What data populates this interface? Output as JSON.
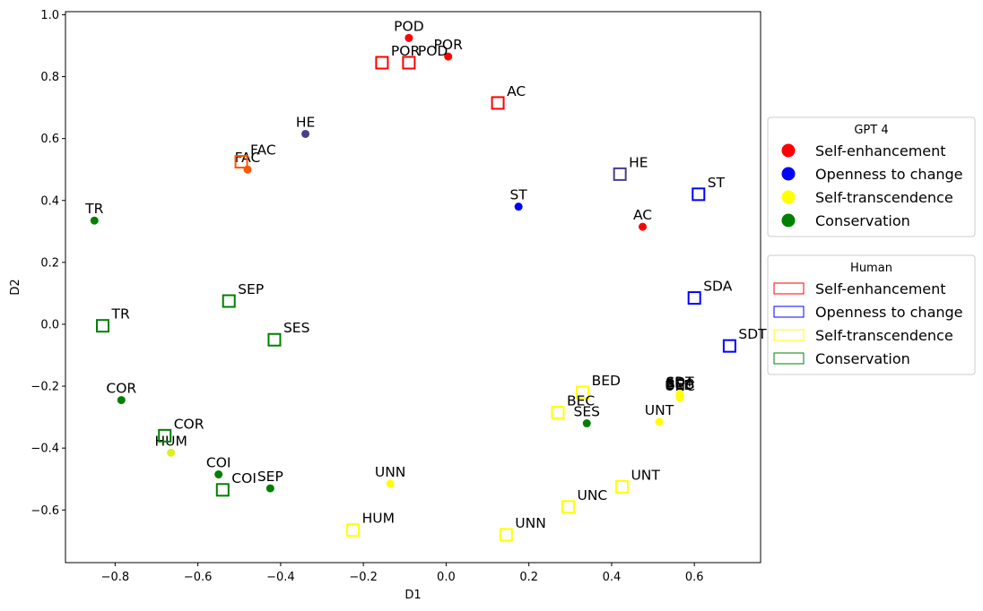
{
  "chart_data": {
    "type": "scatter",
    "xlabel": "D1",
    "ylabel": "D2",
    "xlim": [
      -0.92,
      0.76
    ],
    "ylim": [
      -0.77,
      1.01
    ],
    "x_ticks": [
      -0.8,
      -0.6,
      -0.4,
      -0.2,
      0.0,
      0.2,
      0.4,
      0.6
    ],
    "x_tick_labels": [
      "−0.8",
      "−0.6",
      "−0.4",
      "−0.2",
      "0.0",
      "0.2",
      "0.4",
      "0.6"
    ],
    "y_ticks": [
      -0.6,
      -0.4,
      -0.2,
      0.0,
      0.2,
      0.4,
      0.6,
      0.8,
      1.0
    ],
    "y_tick_labels": [
      "−0.6",
      "−0.4",
      "−0.2",
      "0.0",
      "0.2",
      "0.4",
      "0.6",
      "0.8",
      "1.0"
    ],
    "colors": {
      "se": "#ff0000",
      "oc": "#0000ff",
      "st": "#ffff00",
      "co": "#008000"
    },
    "legends": [
      {
        "title": "GPT 4",
        "marker": "circle",
        "entries": [
          {
            "label": "Self-enhancement",
            "color": "#ff0000"
          },
          {
            "label": "Openness to change",
            "color": "#0000ff"
          },
          {
            "label": "Self-transcendence",
            "color": "#ffff00"
          },
          {
            "label": "Conservation",
            "color": "#008000"
          }
        ]
      },
      {
        "title": "Human",
        "marker": "rect",
        "entries": [
          {
            "label": "Self-enhancement",
            "color": "#ff0000"
          },
          {
            "label": "Openness to change",
            "color": "#0000ff"
          },
          {
            "label": "Self-transcendence",
            "color": "#ffff00"
          },
          {
            "label": "Conservation",
            "color": "#008000"
          }
        ]
      }
    ],
    "series": [
      {
        "name": "GPT 4",
        "marker": "circle",
        "points": [
          {
            "label": "POD",
            "x": -0.09,
            "y": 0.925,
            "color": "#ff0000"
          },
          {
            "label": "POR",
            "x": 0.005,
            "y": 0.865,
            "color": "#ff0000"
          },
          {
            "label": "AC",
            "x": 0.475,
            "y": 0.315,
            "color": "#ff0000"
          },
          {
            "label": "FAC",
            "x": -0.48,
            "y": 0.5,
            "color": "#ff5500"
          },
          {
            "label": "HE",
            "x": -0.34,
            "y": 0.615,
            "color": "#483d8b"
          },
          {
            "label": "ST",
            "x": 0.175,
            "y": 0.38,
            "color": "#0000ff"
          },
          {
            "label": "TR",
            "x": -0.85,
            "y": 0.335,
            "color": "#008000"
          },
          {
            "label": "COR",
            "x": -0.785,
            "y": -0.245,
            "color": "#008000"
          },
          {
            "label": "HUM",
            "x": -0.665,
            "y": -0.415,
            "color": "#ddee22"
          },
          {
            "label": "COI",
            "x": -0.55,
            "y": -0.485,
            "color": "#008000"
          },
          {
            "label": "SEP",
            "x": -0.425,
            "y": -0.53,
            "color": "#008000"
          },
          {
            "label": "UNN",
            "x": -0.135,
            "y": -0.515,
            "color": "#ffff00"
          },
          {
            "label": "SES",
            "x": 0.34,
            "y": -0.32,
            "color": "#008000"
          },
          {
            "label": "UNT",
            "x": 0.515,
            "y": -0.315,
            "color": "#ffff00"
          },
          {
            "label": "SDT",
            "x": 0.565,
            "y": -0.225,
            "color": "#ffff00"
          },
          {
            "label": "SDA",
            "x": 0.565,
            "y": -0.228,
            "color": "#ffff00"
          },
          {
            "label": "BEC",
            "x": 0.565,
            "y": -0.232,
            "color": "#ffff00"
          },
          {
            "label": "BED",
            "x": 0.565,
            "y": -0.234,
            "color": "#ffff00"
          },
          {
            "label": "UNC",
            "x": 0.565,
            "y": -0.238,
            "color": "#ffff00"
          }
        ]
      },
      {
        "name": "Human",
        "marker": "square",
        "points": [
          {
            "label": "POR",
            "x": -0.155,
            "y": 0.845,
            "color": "#ff0000"
          },
          {
            "label": "POD",
            "x": -0.09,
            "y": 0.845,
            "color": "#ff0000"
          },
          {
            "label": "AC",
            "x": 0.125,
            "y": 0.715,
            "color": "#ff0000"
          },
          {
            "label": "FAC",
            "x": -0.495,
            "y": 0.525,
            "color": "#ff5500"
          },
          {
            "label": "HE",
            "x": 0.42,
            "y": 0.485,
            "color": "#483d8b"
          },
          {
            "label": "ST",
            "x": 0.61,
            "y": 0.42,
            "color": "#0000ff"
          },
          {
            "label": "SDA",
            "x": 0.6,
            "y": 0.085,
            "color": "#0000ff"
          },
          {
            "label": "SDT",
            "x": 0.685,
            "y": -0.07,
            "color": "#0000ff"
          },
          {
            "label": "TR",
            "x": -0.83,
            "y": -0.005,
            "color": "#008000"
          },
          {
            "label": "SEP",
            "x": -0.525,
            "y": 0.075,
            "color": "#008000"
          },
          {
            "label": "SES",
            "x": -0.415,
            "y": -0.05,
            "color": "#008000"
          },
          {
            "label": "COR",
            "x": -0.68,
            "y": -0.36,
            "color": "#008000"
          },
          {
            "label": "COI",
            "x": -0.54,
            "y": -0.535,
            "color": "#008000"
          },
          {
            "label": "HUM",
            "x": -0.225,
            "y": -0.665,
            "color": "#ffff00"
          },
          {
            "label": "UNN",
            "x": 0.145,
            "y": -0.68,
            "color": "#ffff00"
          },
          {
            "label": "UNC",
            "x": 0.295,
            "y": -0.59,
            "color": "#ffff00"
          },
          {
            "label": "UNT",
            "x": 0.425,
            "y": -0.525,
            "color": "#ffff00"
          },
          {
            "label": "BED",
            "x": 0.33,
            "y": -0.22,
            "color": "#ffff00"
          },
          {
            "label": "BEC",
            "x": 0.27,
            "y": -0.285,
            "color": "#ffff00"
          }
        ]
      }
    ]
  }
}
